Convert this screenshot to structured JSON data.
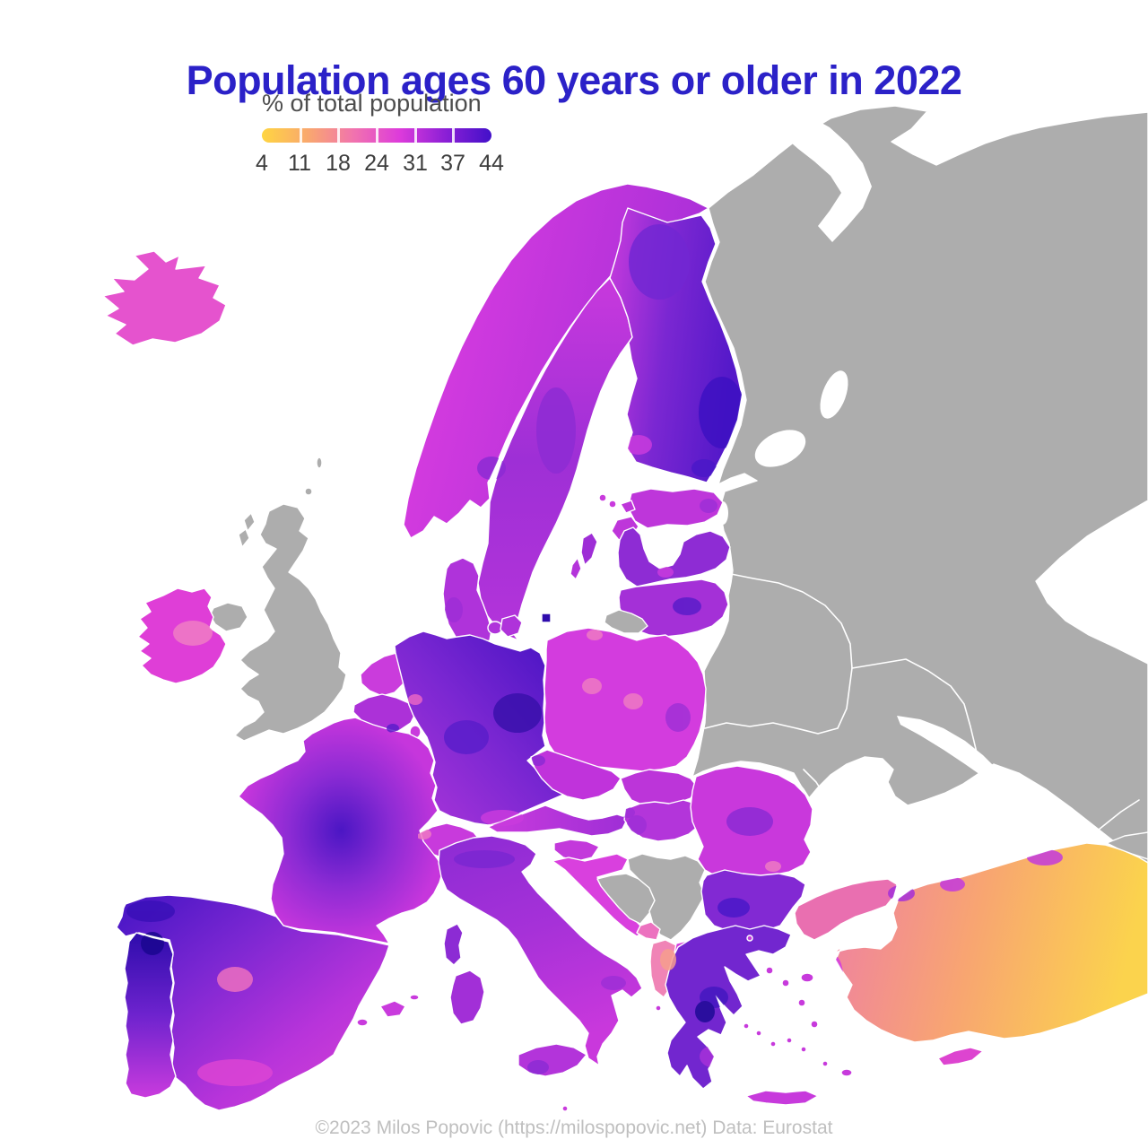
{
  "title": "Population ages 60 years or older in 2022",
  "legend": {
    "label": "% of total population",
    "ticks": [
      "4",
      "11",
      "18",
      "24",
      "31",
      "37",
      "44"
    ],
    "gradient": [
      "#FFD541",
      "#F9A86E",
      "#F173AE",
      "#DD3BDB",
      "#8B1FD6",
      "#4210C9"
    ]
  },
  "caption": "©2023 Milos Popovic (https://milospopovic.net) Data: Eurostat",
  "colors": {
    "title": "#2B21C8",
    "legend_label": "#4D4D4D",
    "legend_ticks": "#3D3D3D",
    "caption": "#BFBFBF",
    "sea": "#FFFFFF",
    "no_data": "#ADADAD",
    "border": "#FFFFFF"
  },
  "map": {
    "regions": [
      {
        "id": "iceland",
        "fill": [
          "#E553CE"
        ]
      },
      {
        "id": "norway",
        "fill": [
          "#E13EE1",
          "#A82FD8"
        ],
        "dir": [
          0,
          0,
          1,
          0.3
        ]
      },
      {
        "id": "sweden",
        "fill": [
          "#C839DD",
          "#9E2FD6",
          "#B434DA"
        ],
        "dir": [
          0,
          0,
          0,
          1
        ]
      },
      {
        "id": "finland",
        "fill": [
          "#C93BDD",
          "#7B27D2",
          "#5519C9"
        ],
        "dir": [
          0,
          0,
          1,
          0.25
        ]
      },
      {
        "id": "denmark",
        "fill": [
          "#AF33DA"
        ]
      },
      {
        "id": "bornholm",
        "fill": [
          "#2E0CAC"
        ]
      },
      {
        "id": "estonia",
        "fill": [
          "#BE36DA"
        ]
      },
      {
        "id": "latvia",
        "fill": [
          "#8E2CD4"
        ]
      },
      {
        "id": "lithuania",
        "fill": [
          "#A430D7"
        ]
      },
      {
        "id": "ireland",
        "fill": [
          "#DF3ED7"
        ]
      },
      {
        "id": "uk",
        "fill": [
          "#ADADAD"
        ]
      },
      {
        "id": "russia-belarus-ukraine",
        "fill": [
          "#ADADAD"
        ]
      },
      {
        "id": "kaliningrad",
        "fill": [
          "#ADADAD"
        ]
      },
      {
        "id": "serbia",
        "fill": [
          "#ADADAD"
        ]
      },
      {
        "id": "bosnia",
        "fill": [
          "#ADADAD"
        ]
      },
      {
        "id": "georgia",
        "fill": [
          "#ADADAD"
        ]
      },
      {
        "id": "netherlands",
        "fill": [
          "#CA3CDC"
        ]
      },
      {
        "id": "belgium",
        "fill": [
          "#AC31D8"
        ]
      },
      {
        "id": "luxembourg",
        "fill": [
          "#C93BDD"
        ]
      },
      {
        "id": "germany",
        "fill": [
          "#B037DA",
          "#7B27D2",
          "#4412C2"
        ],
        "dir": [
          0,
          1,
          1,
          0
        ]
      },
      {
        "id": "poland",
        "fill": [
          "#D33CDE"
        ]
      },
      {
        "id": "czechia",
        "fill": [
          "#C033DB"
        ]
      },
      {
        "id": "slovakia",
        "fill": [
          "#BC35D9"
        ]
      },
      {
        "id": "austria",
        "fill": [
          "#C93BDD",
          "#9E2ED6"
        ],
        "dir": [
          0,
          0,
          1,
          0
        ]
      },
      {
        "id": "switzerland",
        "fill": [
          "#C83ADC"
        ]
      },
      {
        "id": "hungary",
        "fill": [
          "#B335DA"
        ]
      },
      {
        "id": "slovenia",
        "fill": [
          "#C339DB"
        ]
      },
      {
        "id": "croatia",
        "fill": [
          "#D940DE"
        ]
      },
      {
        "id": "montenegro",
        "fill": [
          "#EC72BF"
        ]
      },
      {
        "id": "albania",
        "fill": [
          "#F084B6"
        ]
      },
      {
        "id": "north-macedonia",
        "fill": [
          "#D33CDE"
        ]
      },
      {
        "id": "romania",
        "fill": [
          "#C938DC"
        ]
      },
      {
        "id": "bulgaria",
        "fill": [
          "#8229D3"
        ]
      },
      {
        "id": "greece",
        "fill": [
          "#7226CF"
        ]
      },
      {
        "id": "greece-islands",
        "fill": [
          "#C73ADC"
        ]
      },
      {
        "id": "crete",
        "fill": [
          "#C73ADC"
        ]
      },
      {
        "id": "france",
        "fill": [
          "#4B16C4",
          "#8C2BD4",
          "#C636DC"
        ],
        "type": "radial"
      },
      {
        "id": "corsica",
        "fill": [
          "#8C2BD4"
        ]
      },
      {
        "id": "italy",
        "fill": [
          "#8C2BD4",
          "#A631D8",
          "#C938DC"
        ],
        "dir": [
          0,
          0,
          0.3,
          1
        ]
      },
      {
        "id": "sicily",
        "fill": [
          "#B334DA"
        ]
      },
      {
        "id": "sardinia",
        "fill": [
          "#A22FD7"
        ]
      },
      {
        "id": "malta",
        "fill": [
          "#C93BDD"
        ]
      },
      {
        "id": "spain",
        "fill": [
          "#4314C4",
          "#7B27D2",
          "#B834DA",
          "#DC44D4"
        ],
        "dir": [
          0,
          0,
          1,
          1
        ]
      },
      {
        "id": "portugal",
        "fill": [
          "#2E0CAC",
          "#6E23CE",
          "#C93BDD"
        ],
        "dir": [
          0,
          0,
          0,
          1
        ]
      },
      {
        "id": "balearics",
        "fill": [
          "#C93BDD"
        ]
      },
      {
        "id": "gotland",
        "fill": [
          "#9E2ED6"
        ]
      },
      {
        "id": "oland",
        "fill": [
          "#B434DA"
        ]
      },
      {
        "id": "aland",
        "fill": [
          "#C93BDD"
        ]
      },
      {
        "id": "turkish-thrace",
        "fill": [
          "#E96FB0"
        ]
      },
      {
        "id": "anatolia",
        "fill": [
          "#EE7FA4",
          "#F8A571",
          "#FBD34D"
        ],
        "dir": [
          0,
          0,
          1,
          0.15
        ]
      },
      {
        "id": "cyprus",
        "fill": [
          "#DD44D0"
        ]
      }
    ],
    "accents": {
      "finland-east-dark": "#3D10C2",
      "finland-se-dark": "#4A18C8",
      "finland-north-purple": "#7227D2",
      "finland-sw-magenta": "#C93BDD",
      "sweden-mid-purple": "#8E2CD4",
      "norway-oslo-purple": "#8C2BD4",
      "ireland-mid-pink": "#F07CC4",
      "france-paris-pink": "#EE79C3",
      "france-center-dark": "#4B16C4",
      "france-west-purple": "#7B27D2",
      "france-ne-magenta": "#C93BDD",
      "germany-berlin-dark": "#3A11AC",
      "germany-center-dark": "#5B1ECB",
      "germany-ruhr-pink": "#E866C6",
      "germany-south-magenta": "#C93BDD",
      "poland-pink-1": "#EE79C3",
      "poland-pink-2": "#EE79C3",
      "poland-pink-3": "#EE79C3",
      "poland-east-purple": "#A030D6",
      "spain-madrid-pink": "#EC6FC0",
      "spain-northwest-dark": "#3A10B8",
      "spain-south-magenta": "#DC44D4",
      "portugal-north-navy": "#1B0790",
      "lithuania-dark": "#5B1CC9",
      "latvia-riga-magenta": "#C93BDD",
      "romania-center-purple": "#8C2BD4",
      "romania-bucharest-pink": "#EE79C3",
      "bulgaria-dark": "#4A18C8",
      "greece-epirus-navy": "#1E0B96",
      "greece-epirus-purple": "#4418C0",
      "greece-pelop-purple": "#A631D8",
      "italy-po-purple": "#7B27D2",
      "italy-south-purple": "#9E2ED6",
      "switzerland-pink": "#EE79C3",
      "turkey-istanbul-purple": "#A530D8",
      "turkey-north-magenta-1": "#C33ADC",
      "turkey-north-magenta-2": "#C33ADC",
      "turkey-aegean-magenta": "#D33CDE",
      "austria-vienna-purple": "#9E2ED6",
      "hungary-west-purple": "#9E2ED6",
      "estonia-east-purple": "#9E2ED6",
      "sicily-purple": "#8C2BD4",
      "denmark-west-purple": "#9E2ED6",
      "belgium-brussels-dark": "#5B1ECB",
      "czech-prague-purple": "#8C2BD4",
      "albania-salmon": "#F69E8E"
    }
  }
}
